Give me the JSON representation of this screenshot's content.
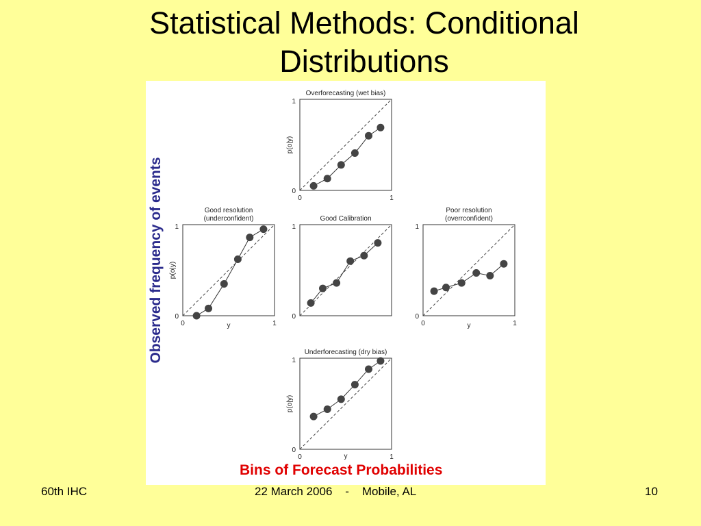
{
  "slide": {
    "title_line1": "Statistical Methods:  Conditional",
    "title_line2": "Distributions",
    "y_label": "Observed frequency of events",
    "x_label": "Bins of Forecast Probabilities",
    "footer_left": "60th IHC",
    "footer_center": "22 March 2006    -    Mobile, AL",
    "footer_right": "10"
  },
  "colors": {
    "background": "#ffff99",
    "y_label": "#2b2b8c",
    "x_label": "#e00000",
    "point": "#444444"
  },
  "chart_data": [
    {
      "type": "line",
      "title": "Overforecasting (wet bias)",
      "ylabel": "p(o|y)",
      "xlabel": "",
      "x_ticks": [
        "0",
        "1"
      ],
      "y_ticks": [
        "0",
        "1"
      ],
      "xlim": [
        0,
        1
      ],
      "ylim": [
        0,
        1
      ],
      "diagonal": true,
      "series": [
        {
          "x": [
            0.15,
            0.3,
            0.45,
            0.6,
            0.75,
            0.88
          ],
          "y": [
            0.05,
            0.13,
            0.28,
            0.41,
            0.6,
            0.69
          ]
        }
      ]
    },
    {
      "type": "line",
      "title": "Good resolution\n(underconfident)",
      "ylabel": "p(o|y)",
      "xlabel": "y",
      "x_ticks": [
        "0",
        "1"
      ],
      "y_ticks": [
        "0",
        "1"
      ],
      "xlim": [
        0,
        1
      ],
      "ylim": [
        0,
        1
      ],
      "diagonal": true,
      "series": [
        {
          "x": [
            0.15,
            0.28,
            0.45,
            0.6,
            0.73,
            0.88
          ],
          "y": [
            0.0,
            0.08,
            0.35,
            0.62,
            0.86,
            0.95
          ]
        }
      ]
    },
    {
      "type": "line",
      "title": "Good Calibration",
      "ylabel": "",
      "xlabel": "",
      "x_ticks": [],
      "y_ticks": [
        "0",
        "1"
      ],
      "xlim": [
        0,
        1
      ],
      "ylim": [
        0,
        1
      ],
      "diagonal": true,
      "series": [
        {
          "x": [
            0.12,
            0.25,
            0.4,
            0.55,
            0.7,
            0.85
          ],
          "y": [
            0.14,
            0.3,
            0.36,
            0.6,
            0.66,
            0.8
          ]
        }
      ]
    },
    {
      "type": "line",
      "title": "Poor resolution\n(overrconfident)",
      "ylabel": "",
      "xlabel": "y",
      "x_ticks": [
        "0",
        "1"
      ],
      "y_ticks": [
        "0",
        "1"
      ],
      "xlim": [
        0,
        1
      ],
      "ylim": [
        0,
        1
      ],
      "diagonal": true,
      "series": [
        {
          "x": [
            0.12,
            0.25,
            0.42,
            0.58,
            0.73,
            0.88
          ],
          "y": [
            0.27,
            0.31,
            0.36,
            0.47,
            0.44,
            0.57
          ]
        }
      ]
    },
    {
      "type": "line",
      "title": "Underforecasting (dry bias)",
      "ylabel": "p(o|y)",
      "xlabel": "y",
      "x_ticks": [
        "0",
        "1"
      ],
      "y_ticks": [
        "0",
        "1"
      ],
      "xlim": [
        0,
        1
      ],
      "ylim": [
        0,
        1
      ],
      "diagonal": true,
      "series": [
        {
          "x": [
            0.15,
            0.3,
            0.45,
            0.6,
            0.75,
            0.88
          ],
          "y": [
            0.36,
            0.44,
            0.55,
            0.71,
            0.88,
            0.97
          ]
        }
      ]
    }
  ]
}
